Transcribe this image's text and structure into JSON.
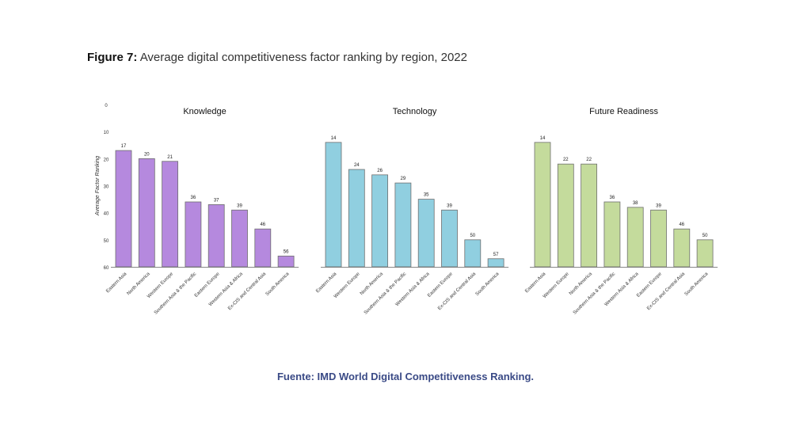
{
  "figure": {
    "label": "Figure 7:",
    "title": "Average digital competitiveness factor ranking by region, 2022"
  },
  "source": "Fuente: IMD World Digital Competitiveness Ranking.",
  "chart_data": {
    "type": "bar",
    "ylabel": "Average Factor Ranking",
    "ylim": [
      0,
      60
    ],
    "yticks": [
      0,
      10,
      20,
      30,
      40,
      50,
      60
    ],
    "y_inverted": true,
    "grid": false,
    "panels": [
      {
        "title": "Knowledge",
        "color": "#b589de",
        "categories": [
          "Eastern Asia",
          "North America",
          "Western Europe",
          "Southern Asia & the Pacific",
          "Eastern Europe",
          "Western Asia & Africa",
          "Ex-CIS and Central Asia",
          "South America"
        ],
        "values": [
          17,
          20,
          21,
          36,
          37,
          39,
          46,
          56
        ]
      },
      {
        "title": "Technology",
        "color": "#90cfe0",
        "categories": [
          "Eastern Asia",
          "Western Europe",
          "North America",
          "Southern Asia & the Pacific",
          "Western Asia & Africa",
          "Eastern Europe",
          "Ex-CIS and Central Asia",
          "South America"
        ],
        "values": [
          14,
          24,
          26,
          29,
          35,
          39,
          50,
          57
        ]
      },
      {
        "title": "Future Readiness",
        "color": "#c4db9c",
        "categories": [
          "Eastern Asia",
          "Western Europe",
          "North America",
          "Southern Asia & the Pacific",
          "Western Asia & Africa",
          "Eastern Europe",
          "Ex-CIS and Central Asia",
          "South America"
        ],
        "values": [
          14,
          22,
          22,
          36,
          38,
          39,
          46,
          50
        ]
      }
    ]
  }
}
